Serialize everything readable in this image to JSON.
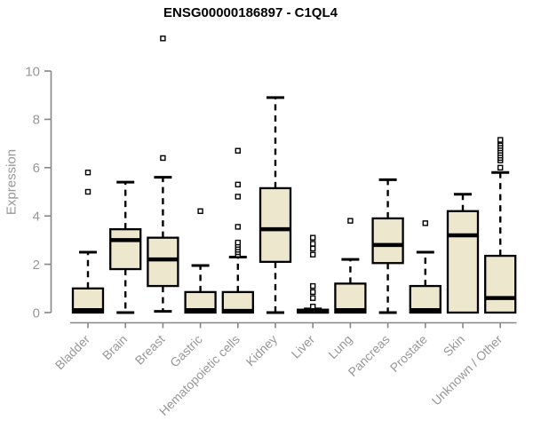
{
  "chart_data": {
    "type": "boxplot",
    "title": "ENSG00000186897 - C1QL4",
    "ylabel": "Expression",
    "xlabel": "",
    "ylim": [
      0,
      11.5
    ],
    "yticks": [
      0,
      2,
      4,
      6,
      8,
      10
    ],
    "grid": false,
    "legend": "none",
    "categories": [
      "Bladder",
      "Brain",
      "Breast",
      "Gastric",
      "Hematopoietic cells",
      "Kidney",
      "Liver",
      "Lung",
      "Pancreas",
      "Prostate",
      "Skin",
      "Unknown / Other"
    ],
    "series": [
      {
        "name": "Bladder",
        "whisker_low": 0,
        "q1": 0,
        "median": 0.1,
        "q3": 1.0,
        "whisker_high": 2.5,
        "outliers": [
          5.0,
          5.8
        ]
      },
      {
        "name": "Brain",
        "whisker_low": 0,
        "q1": 1.8,
        "median": 3.0,
        "q3": 3.45,
        "whisker_high": 5.4,
        "outliers": []
      },
      {
        "name": "Breast",
        "whisker_low": 0.05,
        "q1": 1.1,
        "median": 2.2,
        "q3": 3.1,
        "whisker_high": 5.6,
        "outliers": [
          6.4,
          11.35
        ]
      },
      {
        "name": "Gastric",
        "whisker_low": 0,
        "q1": 0,
        "median": 0.1,
        "q3": 0.85,
        "whisker_high": 1.95,
        "outliers": [
          4.2
        ]
      },
      {
        "name": "Hematopoietic cells",
        "whisker_low": 0,
        "q1": 0,
        "median": 0.07,
        "q3": 0.85,
        "whisker_high": 2.3,
        "outliers": [
          2.4,
          2.5,
          2.6,
          2.7,
          2.8,
          2.9,
          3.55,
          4.8,
          5.3,
          6.7
        ]
      },
      {
        "name": "Kidney",
        "whisker_low": 0,
        "q1": 2.1,
        "median": 3.45,
        "q3": 5.15,
        "whisker_high": 8.9,
        "outliers": []
      },
      {
        "name": "Liver",
        "whisker_low": 0,
        "q1": 0,
        "median": 0.04,
        "q3": 0.12,
        "whisker_high": 0.15,
        "outliers": [
          0.25,
          0.6,
          0.85,
          1.1,
          2.4,
          2.65,
          2.85,
          3.1
        ]
      },
      {
        "name": "Lung",
        "whisker_low": 0,
        "q1": 0,
        "median": 0.1,
        "q3": 1.2,
        "whisker_high": 2.2,
        "outliers": [
          3.8
        ]
      },
      {
        "name": "Pancreas",
        "whisker_low": 0,
        "q1": 2.05,
        "median": 2.8,
        "q3": 3.9,
        "whisker_high": 5.5,
        "outliers": []
      },
      {
        "name": "Prostate",
        "whisker_low": 0,
        "q1": 0,
        "median": 0.1,
        "q3": 1.1,
        "whisker_high": 2.5,
        "outliers": [
          3.7
        ]
      },
      {
        "name": "Skin",
        "whisker_low": 0,
        "q1": 0,
        "median": 3.2,
        "q3": 4.2,
        "whisker_high": 4.9,
        "outliers": []
      },
      {
        "name": "Unknown / Other",
        "whisker_low": 0,
        "q1": 0,
        "median": 0.6,
        "q3": 2.35,
        "whisker_high": 5.8,
        "outliers": [
          6.0,
          6.3,
          6.4,
          6.5,
          6.6,
          6.7,
          6.8,
          6.9,
          7.0,
          7.1,
          7.15
        ]
      }
    ],
    "colors": {
      "box_fill": "#EDE7CE",
      "box_stroke": "#000000",
      "median": "#000000",
      "whisker": "#000000",
      "outlier_fill": "#ffffff",
      "outlier_stroke": "#000000",
      "axis_line": "#878787",
      "axis_text": "#979797",
      "title_text": "#000000",
      "background": "#ffffff"
    }
  }
}
